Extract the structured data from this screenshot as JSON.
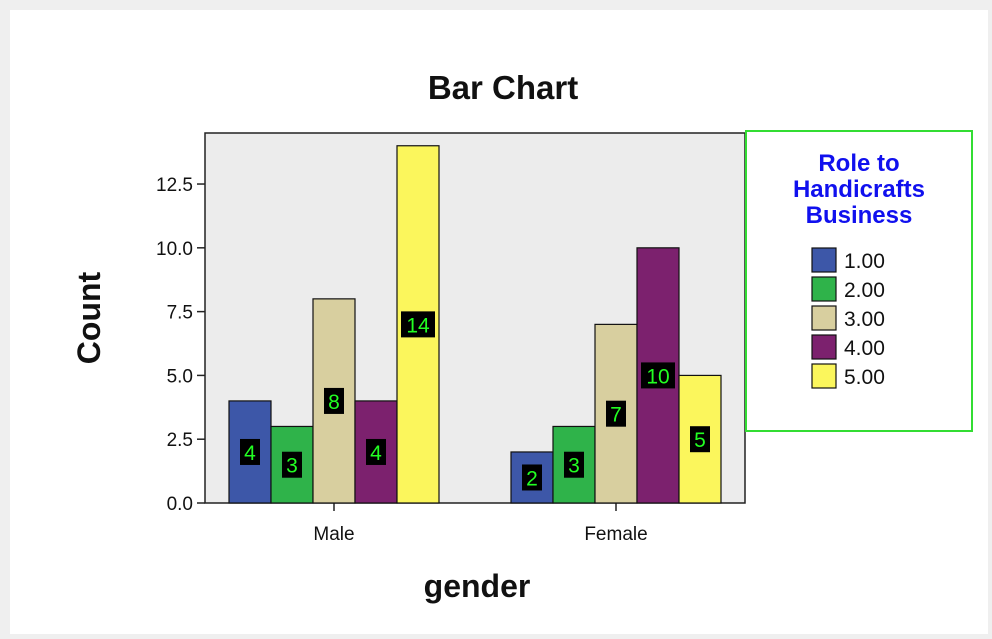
{
  "chart_data": {
    "type": "bar",
    "title": "Bar Chart",
    "xlabel": "gender",
    "ylabel": "Count",
    "categories": [
      "Male",
      "Female"
    ],
    "ylim": [
      0,
      14.5
    ],
    "yticks": [
      "0.0",
      "2.5",
      "5.0",
      "7.5",
      "10.0",
      "12.5"
    ],
    "ytick_values": [
      0,
      2.5,
      5,
      7.5,
      10,
      12.5
    ],
    "grid": false,
    "legend": {
      "title_lines": [
        "Role to",
        "Handicrafts",
        "Business"
      ],
      "placement": "right",
      "border_color": "#33dd33"
    },
    "series": [
      {
        "name": "1.00",
        "color": "#3d57a8",
        "values": [
          4,
          2
        ],
        "labels": [
          "4",
          "2"
        ]
      },
      {
        "name": "2.00",
        "color": "#2fb34a",
        "values": [
          3,
          3
        ],
        "labels": [
          "3",
          "3"
        ]
      },
      {
        "name": "3.00",
        "color": "#d8cf9f",
        "values": [
          8,
          7
        ],
        "labels": [
          "8",
          "7"
        ]
      },
      {
        "name": "4.00",
        "color": "#7c216e",
        "values": [
          4,
          10
        ],
        "labels": [
          "4",
          "10"
        ]
      },
      {
        "name": "5.00",
        "color": "#fbf65c",
        "values": [
          14,
          5
        ],
        "labels": [
          "14",
          "5"
        ]
      }
    ],
    "plot_background": "#ececec",
    "data_label_background": "#000000",
    "data_label_color": "#22ff22"
  }
}
